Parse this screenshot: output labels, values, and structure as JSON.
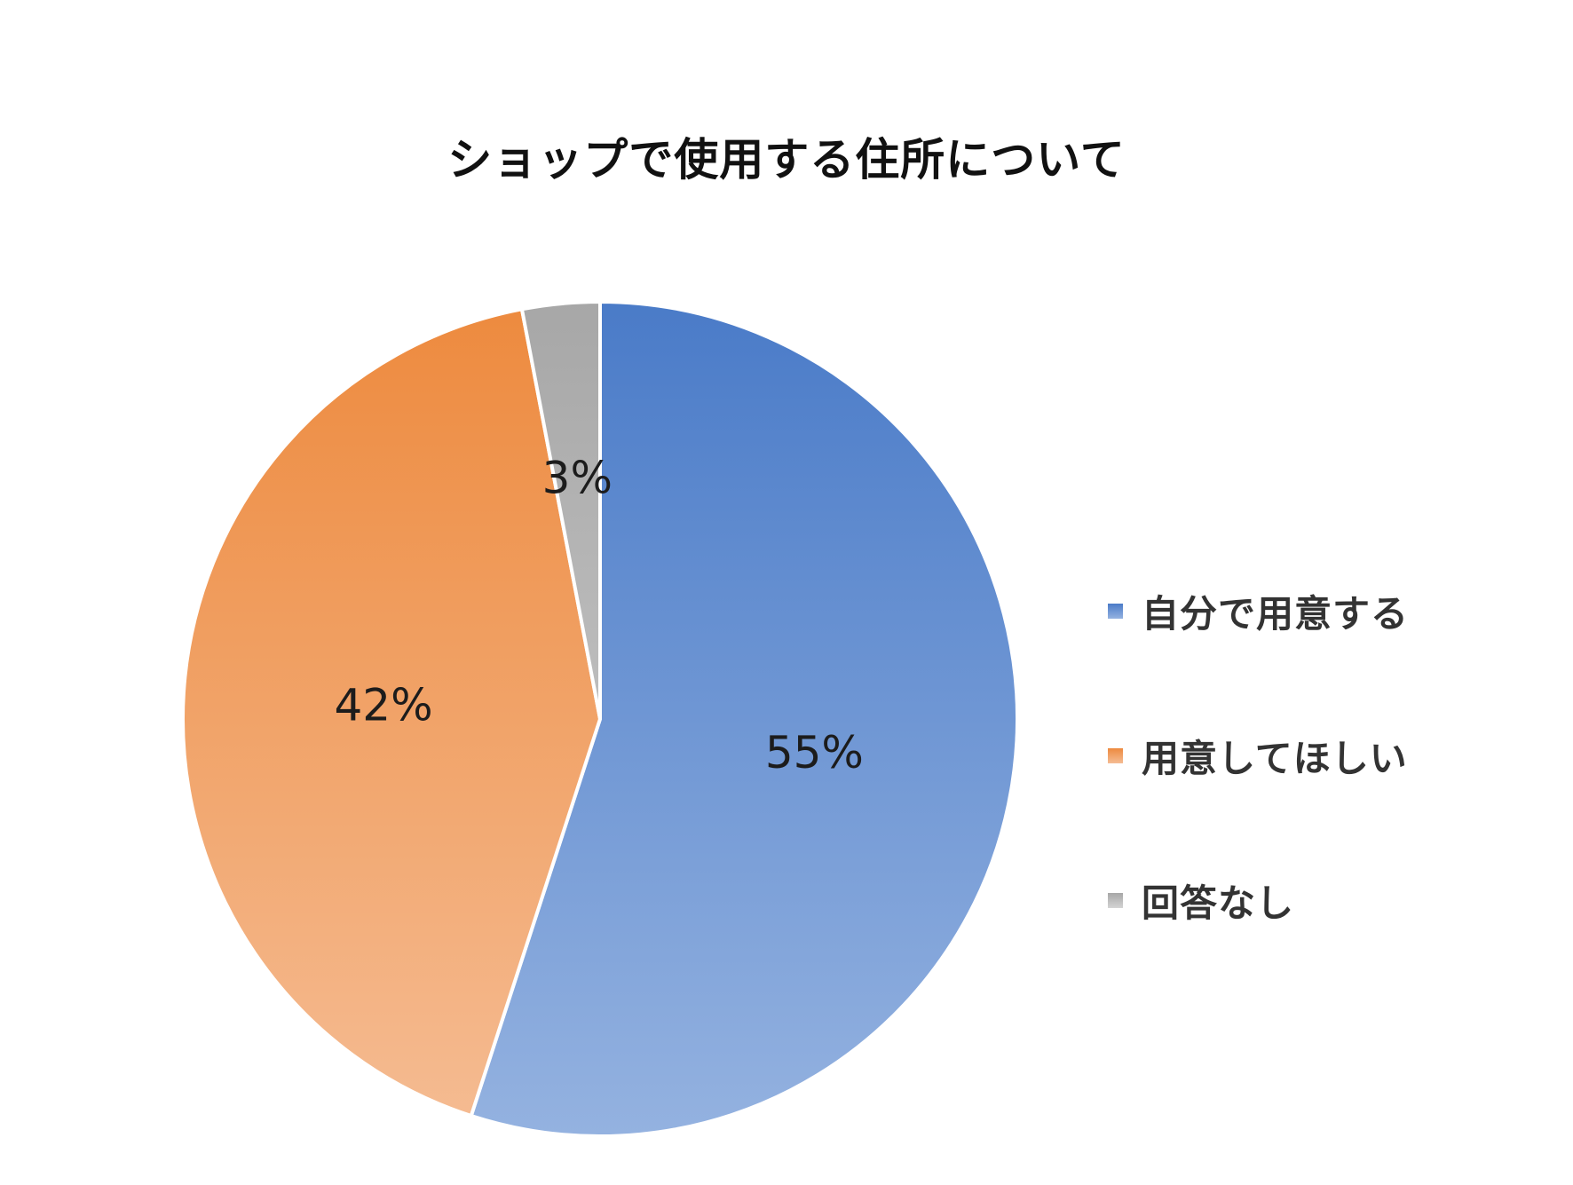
{
  "chart_data": {
    "type": "pie",
    "title": "ショップで使用する住所について",
    "categories": [
      "自分で用意する",
      "用意してほしい",
      "回答なし"
    ],
    "values": [
      55,
      42,
      3
    ],
    "data_labels": [
      "55%",
      "42%",
      "3%"
    ],
    "colors": [
      "#4a7bc8",
      "#ed8a3e",
      "#a7a7a7"
    ],
    "colors_light": [
      "#94b2e0",
      "#f5bc93",
      "#d4d4d4"
    ],
    "start": "top",
    "direction": "clockwise",
    "legend_position": "right"
  }
}
